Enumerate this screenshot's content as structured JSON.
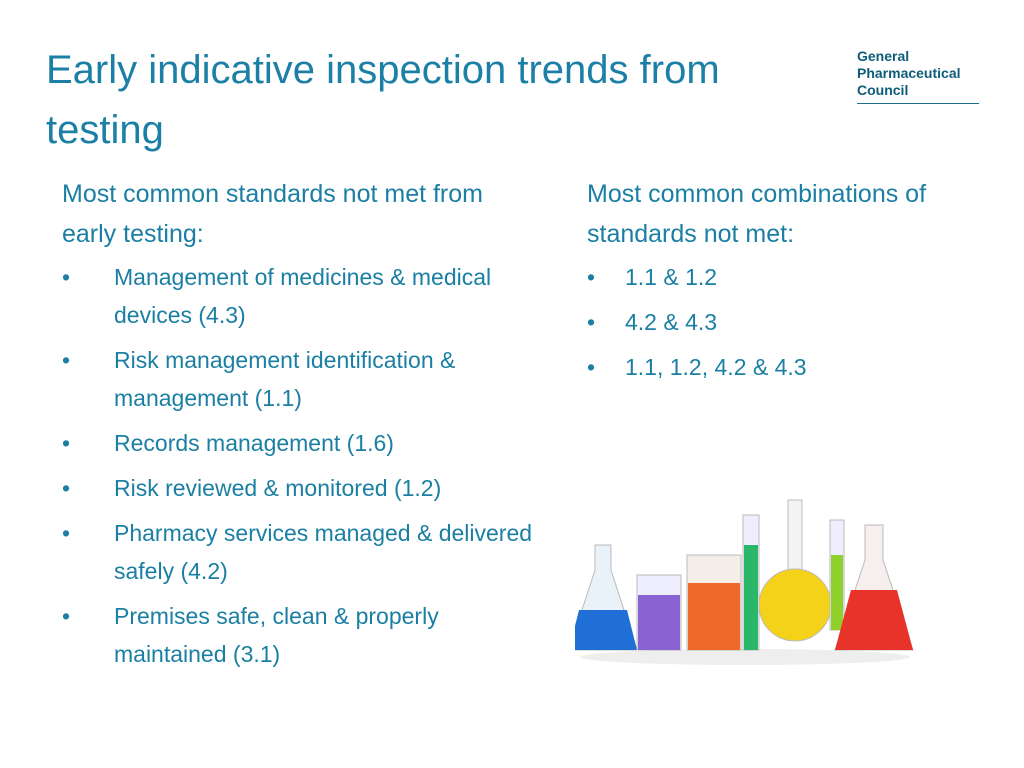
{
  "header": {
    "title": "Early indicative inspection trends from testing",
    "logo": [
      "General",
      "Pharmaceutical",
      "Council"
    ]
  },
  "left": {
    "heading": "Most common standards not met from early testing:",
    "items": [
      "Management of medicines & medical devices (4.3)",
      "Risk management identification & management (1.1)",
      "Records management (1.6)",
      "Risk reviewed & monitored (1.2)",
      "Pharmacy services managed & delivered safely (4.2)",
      "Premises safe, clean & properly maintained (3.1)"
    ]
  },
  "right": {
    "heading": "Most common combinations of standards not met:",
    "items": [
      "1.1 & 1.2",
      "4.2 & 4.3",
      "1.1, 1.2, 4.2 & 4.3"
    ]
  }
}
